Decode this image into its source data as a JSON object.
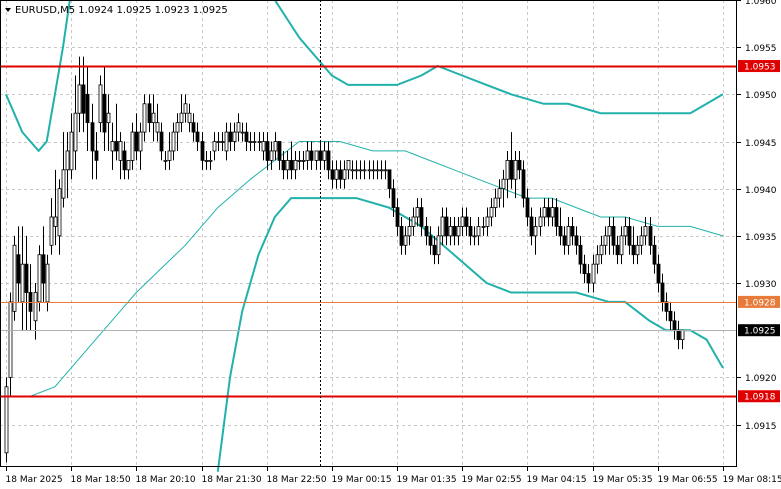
{
  "header": {
    "symbol_line": "EURUSD,M5  1.0924 1.0925 1.0923 1.0925"
  },
  "chart_data": {
    "type": "candlestick",
    "symbol": "EURUSD",
    "timeframe": "M5",
    "ohlc_header": {
      "open": 1.0924,
      "high": 1.0925,
      "low": 1.0923,
      "close": 1.0925
    },
    "ylim": [
      1.09105,
      1.096
    ],
    "grid": true,
    "colors": {
      "candle": "#000000",
      "grid": "#c8c8c8",
      "band": "#20b2aa",
      "ma": "#20b2aa",
      "level_red": "#e00000",
      "level_orange": "#e87a3a",
      "price_line": "#b0b0b0",
      "vline": "#000000"
    },
    "y_ticks": [
      "1.0960",
      "1.0955",
      "1.0950",
      "1.0945",
      "1.0940",
      "1.0935",
      "1.0930",
      "1.0920",
      "1.0915"
    ],
    "x_ticks": [
      "18 Mar 2025",
      "18 Mar 18:50",
      "18 Mar 20:10",
      "18 Mar 21:30",
      "18 Mar 22:50",
      "19 Mar 00:15",
      "19 Mar 01:35",
      "19 Mar 02:55",
      "19 Mar 04:15",
      "19 Mar 05:35",
      "19 Mar 06:55",
      "19 Mar 08:15"
    ],
    "x_range": [
      0,
      178
    ],
    "x_tick_index": [
      0,
      16,
      32,
      48,
      64,
      80,
      96,
      112,
      128,
      144,
      160,
      176
    ],
    "vertical_line_index": 77,
    "horizontal_levels": [
      {
        "label": "1.0953",
        "value": 1.0953,
        "color": "#e00000"
      },
      {
        "label": "1.0928",
        "value": 1.0928,
        "color": "#e87a3a"
      },
      {
        "label": "1.0918",
        "value": 1.0918,
        "color": "#e00000"
      }
    ],
    "current_price": {
      "label": "1.0925",
      "value": 1.0925
    },
    "ohlc": [
      [
        1.0912,
        1.092,
        1.0911,
        1.0919
      ],
      [
        1.092,
        1.0929,
        1.0918,
        1.0928
      ],
      [
        1.0927,
        1.0935,
        1.0926,
        1.0934
      ],
      [
        1.0933,
        1.0936,
        1.0928,
        1.093
      ],
      [
        1.0928,
        1.0936,
        1.0925,
        1.0932
      ],
      [
        1.0932,
        1.0935,
        1.0925,
        1.0929
      ],
      [
        1.0929,
        1.0932,
        1.0925,
        1.0927
      ],
      [
        1.0926,
        1.093,
        1.0924,
        1.0929
      ],
      [
        1.0928,
        1.0934,
        1.0927,
        1.0933
      ],
      [
        1.0933,
        1.0936,
        1.0928,
        1.093
      ],
      [
        1.0928,
        1.0933,
        1.0927,
        1.0932
      ],
      [
        1.0934,
        1.0939,
        1.0933,
        1.0937
      ],
      [
        1.0936,
        1.0942,
        1.0934,
        1.0937
      ],
      [
        1.0935,
        1.0941,
        1.0933,
        1.094
      ],
      [
        1.0939,
        1.0946,
        1.0938,
        1.0942
      ],
      [
        1.0942,
        1.0946,
        1.0939,
        1.0944
      ],
      [
        1.0942,
        1.0948,
        1.0941,
        1.0946
      ],
      [
        1.0944,
        1.0952,
        1.0942,
        1.0948
      ],
      [
        1.0948,
        1.0954,
        1.0946,
        1.0951
      ],
      [
        1.0951,
        1.0954,
        1.0946,
        1.0948
      ],
      [
        1.095,
        1.0953,
        1.0944,
        1.0947
      ],
      [
        1.0947,
        1.0949,
        1.0941,
        1.0944
      ],
      [
        1.0944,
        1.0946,
        1.0941,
        1.0943
      ],
      [
        1.0947,
        1.0952,
        1.0946,
        1.0951
      ],
      [
        1.095,
        1.0953,
        1.0944,
        1.0946
      ],
      [
        1.0947,
        1.095,
        1.0944,
        1.0948
      ],
      [
        1.0944,
        1.0947,
        1.0942,
        1.0945
      ],
      [
        1.0945,
        1.0949,
        1.0943,
        1.0944
      ],
      [
        1.0943,
        1.0946,
        1.0941,
        1.0945
      ],
      [
        1.0944,
        1.0945,
        1.0941,
        1.0942
      ],
      [
        1.0942,
        1.0943,
        1.0941,
        1.0943
      ],
      [
        1.0943,
        1.0947,
        1.0942,
        1.0946
      ],
      [
        1.0946,
        1.0948,
        1.0943,
        1.0944
      ],
      [
        1.0944,
        1.0947,
        1.0942,
        1.0946
      ],
      [
        1.0946,
        1.095,
        1.0945,
        1.0949
      ],
      [
        1.0949,
        1.095,
        1.0946,
        1.0947
      ],
      [
        1.0947,
        1.095,
        1.0945,
        1.0948
      ],
      [
        1.0946,
        1.0949,
        1.0945,
        1.0947
      ],
      [
        1.0946,
        1.0947,
        1.0943,
        1.0944
      ],
      [
        1.0943,
        1.0944,
        1.0942,
        1.0943
      ],
      [
        1.0943,
        1.0946,
        1.0942,
        1.0944
      ],
      [
        1.0944,
        1.0947,
        1.0943,
        1.0946
      ],
      [
        1.0946,
        1.0948,
        1.0944,
        1.0947
      ],
      [
        1.0947,
        1.095,
        1.0946,
        1.0948
      ],
      [
        1.0948,
        1.095,
        1.0947,
        1.0949
      ],
      [
        1.0947,
        1.0949,
        1.0946,
        1.0948
      ],
      [
        1.0947,
        1.0948,
        1.0945,
        1.0946
      ],
      [
        1.0946,
        1.0947,
        1.0944,
        1.0945
      ],
      [
        1.0945,
        1.0946,
        1.0942,
        1.0943
      ],
      [
        1.0943,
        1.0944,
        1.0942,
        1.0943
      ],
      [
        1.0943,
        1.0944,
        1.0942,
        1.0943
      ],
      [
        1.0944,
        1.0946,
        1.0943,
        1.0945
      ],
      [
        1.0945,
        1.0946,
        1.0944,
        1.0945
      ],
      [
        1.0945,
        1.0946,
        1.0944,
        1.0945
      ],
      [
        1.0944,
        1.0947,
        1.0943,
        1.0946
      ],
      [
        1.0946,
        1.0947,
        1.0944,
        1.0945
      ],
      [
        1.0945,
        1.0947,
        1.0944,
        1.0946
      ],
      [
        1.0946,
        1.0948,
        1.0945,
        1.0947
      ],
      [
        1.0946,
        1.0947,
        1.0945,
        1.0946
      ],
      [
        1.0946,
        1.0947,
        1.0944,
        1.0945
      ],
      [
        1.0945,
        1.0946,
        1.0944,
        1.0945
      ],
      [
        1.0945,
        1.0946,
        1.0944,
        1.0945
      ],
      [
        1.0945,
        1.0946,
        1.0944,
        1.0945
      ],
      [
        1.0944,
        1.0946,
        1.0943,
        1.0945
      ],
      [
        1.0945,
        1.0946,
        1.0942,
        1.0943
      ],
      [
        1.0943,
        1.0945,
        1.0942,
        1.0944
      ],
      [
        1.0944,
        1.0946,
        1.0943,
        1.0945
      ],
      [
        1.0945,
        1.0945,
        1.0942,
        1.0943
      ],
      [
        1.0943,
        1.0944,
        1.0941,
        1.0942
      ],
      [
        1.0942,
        1.0944,
        1.0941,
        1.0943
      ],
      [
        1.0943,
        1.0945,
        1.0941,
        1.0942
      ],
      [
        1.0942,
        1.0944,
        1.0941,
        1.0943
      ],
      [
        1.0943,
        1.0944,
        1.0942,
        1.0943
      ],
      [
        1.0943,
        1.0944,
        1.0942,
        1.0943
      ],
      [
        1.0943,
        1.0945,
        1.0942,
        1.0944
      ],
      [
        1.0944,
        1.0945,
        1.0942,
        1.0943
      ],
      [
        1.0943,
        1.0944,
        1.0942,
        1.0944
      ],
      [
        1.0944,
        1.0945,
        1.0942,
        1.0943
      ],
      [
        1.0943,
        1.0945,
        1.0942,
        1.0944
      ],
      [
        1.0944,
        1.0945,
        1.0941,
        1.0942
      ],
      [
        1.0942,
        1.0943,
        1.094,
        1.0941
      ],
      [
        1.0941,
        1.0943,
        1.094,
        1.0942
      ],
      [
        1.0942,
        1.0943,
        1.094,
        1.0941
      ],
      [
        1.0941,
        1.0943,
        1.094,
        1.0942
      ],
      [
        1.0942,
        1.0943,
        1.0941,
        1.0943
      ],
      [
        1.0942,
        1.0943,
        1.0941,
        1.0942
      ],
      [
        1.0942,
        1.0943,
        1.0941,
        1.0942
      ],
      [
        1.0942,
        1.0943,
        1.0941,
        1.0942
      ],
      [
        1.0942,
        1.0943,
        1.0941,
        1.0942
      ],
      [
        1.0942,
        1.0943,
        1.0941,
        1.0942
      ],
      [
        1.0942,
        1.0943,
        1.0941,
        1.0942
      ],
      [
        1.0942,
        1.0943,
        1.0941,
        1.0942
      ],
      [
        1.0942,
        1.0943,
        1.0941,
        1.0942
      ],
      [
        1.0942,
        1.0943,
        1.0941,
        1.0942
      ],
      [
        1.0942,
        1.0942,
        1.0939,
        1.094
      ],
      [
        1.094,
        1.0941,
        1.0937,
        1.0938
      ],
      [
        1.0938,
        1.0939,
        1.0935,
        1.0936
      ],
      [
        1.0936,
        1.0937,
        1.0933,
        1.0934
      ],
      [
        1.0934,
        1.0936,
        1.0933,
        1.0935
      ],
      [
        1.0935,
        1.0937,
        1.0934,
        1.0936
      ],
      [
        1.0936,
        1.0938,
        1.0935,
        1.0937
      ],
      [
        1.0937,
        1.0939,
        1.0936,
        1.0938
      ],
      [
        1.0938,
        1.0939,
        1.0935,
        1.0936
      ],
      [
        1.0936,
        1.0937,
        1.0934,
        1.0935
      ],
      [
        1.0935,
        1.0936,
        1.0933,
        1.0934
      ],
      [
        1.0934,
        1.0935,
        1.0932,
        1.0933
      ],
      [
        1.0933,
        1.0936,
        1.0932,
        1.0935
      ],
      [
        1.0935,
        1.0938,
        1.0934,
        1.0937
      ],
      [
        1.0937,
        1.0938,
        1.0934,
        1.0935
      ],
      [
        1.0935,
        1.0937,
        1.0934,
        1.0936
      ],
      [
        1.0936,
        1.0937,
        1.0934,
        1.0935
      ],
      [
        1.0935,
        1.0937,
        1.0934,
        1.0936
      ],
      [
        1.0936,
        1.0938,
        1.0935,
        1.0937
      ],
      [
        1.0937,
        1.0938,
        1.0935,
        1.0936
      ],
      [
        1.0936,
        1.0937,
        1.0934,
        1.0935
      ],
      [
        1.0935,
        1.0936,
        1.0934,
        1.0935
      ],
      [
        1.0935,
        1.0937,
        1.0934,
        1.0936
      ],
      [
        1.0936,
        1.0937,
        1.0935,
        1.0936
      ],
      [
        1.0936,
        1.0938,
        1.0935,
        1.0937
      ],
      [
        1.0937,
        1.0939,
        1.0936,
        1.0938
      ],
      [
        1.0938,
        1.094,
        1.0937,
        1.0939
      ],
      [
        1.0939,
        1.0941,
        1.0938,
        1.094
      ],
      [
        1.094,
        1.0942,
        1.0938,
        1.0941
      ],
      [
        1.0941,
        1.0944,
        1.0939,
        1.0943
      ],
      [
        1.0943,
        1.0946,
        1.094,
        1.0941
      ],
      [
        1.0941,
        1.0944,
        1.0939,
        1.0943
      ],
      [
        1.0943,
        1.0944,
        1.0941,
        1.0942
      ],
      [
        1.0942,
        1.0943,
        1.0938,
        1.0939
      ],
      [
        1.0939,
        1.094,
        1.0936,
        1.0937
      ],
      [
        1.0937,
        1.0938,
        1.0934,
        1.0935
      ],
      [
        1.0935,
        1.0937,
        1.0933,
        1.0936
      ],
      [
        1.0936,
        1.0938,
        1.0935,
        1.0937
      ],
      [
        1.0937,
        1.0939,
        1.0936,
        1.0938
      ],
      [
        1.0938,
        1.0939,
        1.0936,
        1.0937
      ],
      [
        1.0937,
        1.0939,
        1.0936,
        1.0938
      ],
      [
        1.0938,
        1.0939,
        1.0935,
        1.0936
      ],
      [
        1.0936,
        1.0938,
        1.0934,
        1.0935
      ],
      [
        1.0935,
        1.0936,
        1.0933,
        1.0934
      ],
      [
        1.0934,
        1.0937,
        1.0933,
        1.0936
      ],
      [
        1.0936,
        1.0937,
        1.0934,
        1.0935
      ],
      [
        1.0935,
        1.0936,
        1.0933,
        1.0934
      ],
      [
        1.0934,
        1.0935,
        1.0931,
        1.0932
      ],
      [
        1.0932,
        1.0933,
        1.093,
        1.0931
      ],
      [
        1.0931,
        1.0932,
        1.0929,
        1.093
      ],
      [
        1.093,
        1.0933,
        1.0929,
        1.0932
      ],
      [
        1.0932,
        1.0934,
        1.0931,
        1.0933
      ],
      [
        1.0933,
        1.0935,
        1.0932,
        1.0934
      ],
      [
        1.0934,
        1.0936,
        1.0933,
        1.0935
      ],
      [
        1.0935,
        1.0937,
        1.0933,
        1.0936
      ],
      [
        1.0936,
        1.0937,
        1.0933,
        1.0934
      ],
      [
        1.0934,
        1.0935,
        1.0932,
        1.0933
      ],
      [
        1.0933,
        1.0936,
        1.0932,
        1.0935
      ],
      [
        1.0935,
        1.0937,
        1.0934,
        1.0936
      ],
      [
        1.0936,
        1.0937,
        1.0933,
        1.0934
      ],
      [
        1.0934,
        1.0936,
        1.0932,
        1.0933
      ],
      [
        1.0933,
        1.0935,
        1.0932,
        1.0934
      ],
      [
        1.0934,
        1.0936,
        1.0933,
        1.0935
      ],
      [
        1.0935,
        1.0937,
        1.0934,
        1.0936
      ],
      [
        1.0936,
        1.0937,
        1.0933,
        1.0934
      ],
      [
        1.0934,
        1.0935,
        1.0931,
        1.0932
      ],
      [
        1.0932,
        1.0933,
        1.0929,
        1.093
      ],
      [
        1.093,
        1.0931,
        1.0927,
        1.0928
      ],
      [
        1.0928,
        1.0929,
        1.0926,
        1.0927
      ],
      [
        1.0927,
        1.0928,
        1.0925,
        1.0926
      ],
      [
        1.0926,
        1.0927,
        1.0924,
        1.0925
      ],
      [
        1.0925,
        1.0926,
        1.0923,
        1.0924
      ],
      [
        1.0924,
        1.0925,
        1.0923,
        1.0925
      ]
    ],
    "bands": {
      "upper": [
        [
          0,
          1.095
        ],
        [
          4,
          1.0946
        ],
        [
          8,
          1.0944
        ],
        [
          10,
          1.0945
        ],
        [
          12,
          1.095
        ],
        [
          14,
          1.0955
        ],
        [
          16,
          1.0961
        ],
        [
          18,
          1.0964
        ],
        [
          40,
          1.0964
        ],
        [
          58,
          1.0961
        ],
        [
          66,
          1.096
        ],
        [
          72,
          1.0956
        ],
        [
          76,
          1.0954
        ],
        [
          80,
          1.0952
        ],
        [
          84,
          1.0951
        ],
        [
          90,
          1.0951
        ],
        [
          96,
          1.0951
        ],
        [
          102,
          1.0952
        ],
        [
          106,
          1.0953
        ],
        [
          112,
          1.0952
        ],
        [
          118,
          1.0951
        ],
        [
          124,
          1.095
        ],
        [
          132,
          1.0949
        ],
        [
          138,
          1.0949
        ],
        [
          146,
          1.0948
        ],
        [
          150,
          1.0948
        ],
        [
          158,
          1.0948
        ],
        [
          164,
          1.0948
        ],
        [
          168,
          1.0948
        ],
        [
          172,
          1.0949
        ],
        [
          176,
          1.095
        ]
      ],
      "middle": [
        [
          0,
          1.0918
        ],
        [
          6,
          1.0918
        ],
        [
          12,
          1.0919
        ],
        [
          16,
          1.0921
        ],
        [
          22,
          1.0924
        ],
        [
          32,
          1.0929
        ],
        [
          44,
          1.0934
        ],
        [
          52,
          1.0938
        ],
        [
          60,
          1.0941
        ],
        [
          66,
          1.0943
        ],
        [
          72,
          1.0945
        ],
        [
          76,
          1.0945
        ],
        [
          82,
          1.0945
        ],
        [
          90,
          1.0944
        ],
        [
          98,
          1.0944
        ],
        [
          104,
          1.0943
        ],
        [
          110,
          1.0942
        ],
        [
          116,
          1.0941
        ],
        [
          122,
          1.094
        ],
        [
          128,
          1.0939
        ],
        [
          134,
          1.0939
        ],
        [
          140,
          1.0938
        ],
        [
          146,
          1.0937
        ],
        [
          152,
          1.0937
        ],
        [
          160,
          1.0936
        ],
        [
          168,
          1.0936
        ],
        [
          176,
          1.0935
        ]
      ],
      "lower": [
        [
          52,
          1.091
        ],
        [
          55,
          1.092
        ],
        [
          58,
          1.0927
        ],
        [
          62,
          1.0933
        ],
        [
          66,
          1.0937
        ],
        [
          70,
          1.0939
        ],
        [
          74,
          1.0939
        ],
        [
          78,
          1.0939
        ],
        [
          86,
          1.0939
        ],
        [
          94,
          1.0938
        ],
        [
          102,
          1.0936
        ],
        [
          110,
          1.0933
        ],
        [
          118,
          1.093
        ],
        [
          124,
          1.0929
        ],
        [
          132,
          1.0929
        ],
        [
          140,
          1.0929
        ],
        [
          148,
          1.0928
        ],
        [
          152,
          1.0928
        ],
        [
          158,
          1.0926
        ],
        [
          162,
          1.0925
        ],
        [
          168,
          1.0925
        ],
        [
          172,
          1.0924
        ],
        [
          176,
          1.0921
        ]
      ]
    }
  }
}
